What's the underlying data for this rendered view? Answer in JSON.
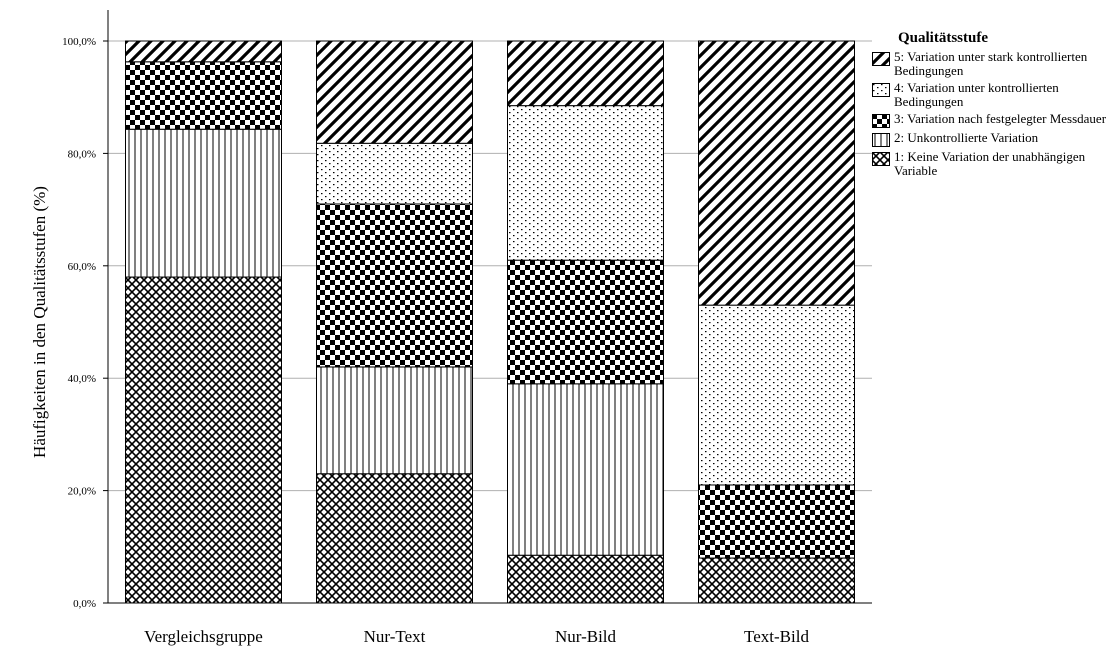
{
  "chart_data": {
    "type": "bar",
    "stacked": true,
    "ylabel": "Häufigkeiten in den Qualitätsstufen (%)",
    "xlabel": "",
    "ylim": [
      0,
      100
    ],
    "yticks": [
      "0,0%",
      "20,0%",
      "40,0%",
      "60,0%",
      "80,0%",
      "100,0%"
    ],
    "grid": true,
    "categories": [
      "Vergleichsgruppe",
      "Nur-Text",
      "Nur-Bild",
      "Text-Bild"
    ],
    "legend": {
      "title": "Qualitätsstufe",
      "placement": "right"
    },
    "series": [
      {
        "name": "1: Keine Variation der unabhängigen Variable",
        "pattern": "crosshatch",
        "values": [
          58.0,
          23.0,
          8.5,
          8.0
        ]
      },
      {
        "name": "2: Unkontrollierte Variation",
        "pattern": "vertical",
        "values": [
          26.3,
          19.0,
          30.5,
          0.0
        ]
      },
      {
        "name": "3: Variation nach festgelegter Messdauer",
        "pattern": "checker",
        "values": [
          12.0,
          29.0,
          22.0,
          13.0
        ]
      },
      {
        "name": "4: Variation unter kontrollierten Bedingungen",
        "pattern": "dots",
        "values": [
          0.0,
          10.8,
          27.5,
          32.0
        ]
      },
      {
        "name": "5: Variation unter stark kontrollierten Bedingungen",
        "pattern": "diagonal",
        "values": [
          3.7,
          18.2,
          11.5,
          47.0
        ]
      }
    ]
  }
}
